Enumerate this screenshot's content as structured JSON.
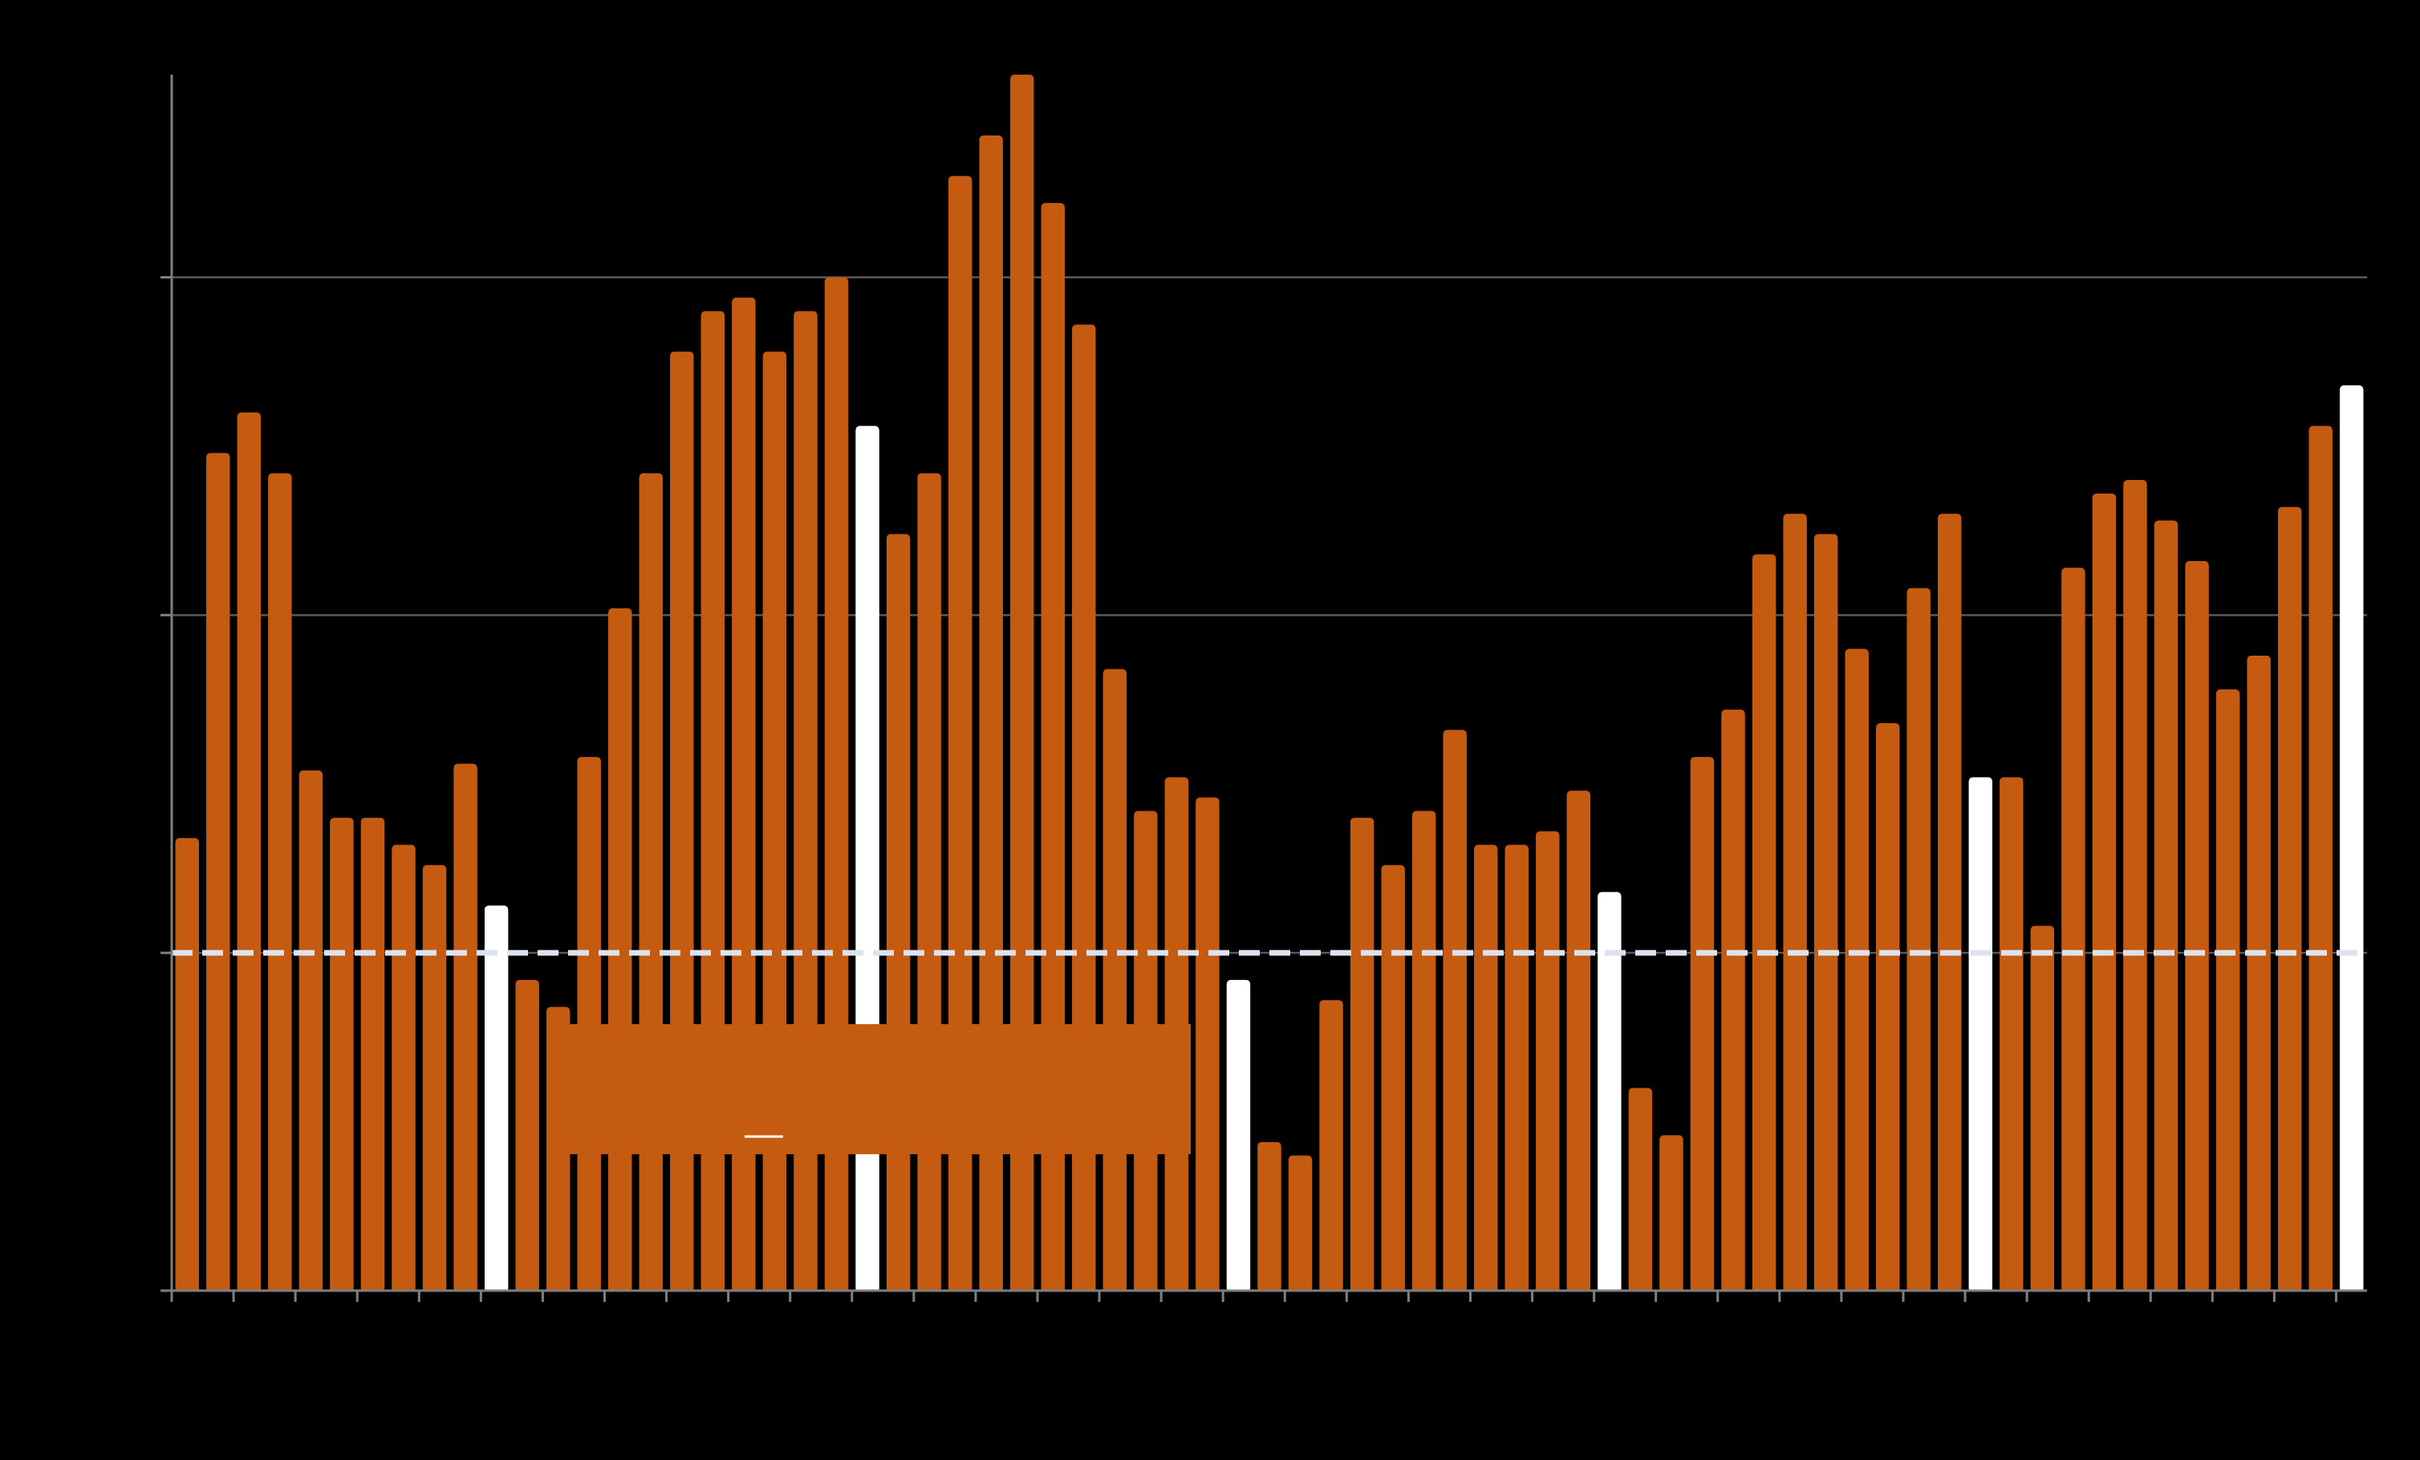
{
  "colors": {
    "background": "#000000",
    "bar": "#c55a11",
    "highlight_bar": "#ffffff",
    "gridline": "#595959",
    "axis": "#7f7f7f",
    "reference_line": "#dce3ee",
    "legend_box": "#c55a11",
    "legend_swatch": "#ffffff"
  },
  "chart_data": {
    "type": "bar",
    "title": "",
    "xlabel": "",
    "ylabel": "",
    "ylim": [
      0,
      3.6
    ],
    "grid": true,
    "legend_placement": "bottom-center",
    "reference_line": {
      "value": 1.0,
      "style": "dashed"
    },
    "highlighted_indices": [
      10,
      22,
      34,
      46,
      58,
      70
    ],
    "series": [
      {
        "values": [
          1.34,
          2.48,
          2.6,
          2.42,
          1.54,
          1.4,
          1.4,
          1.32,
          1.26,
          1.56,
          1.14,
          0.92,
          0.84,
          1.58,
          2.02,
          2.42,
          2.78,
          2.9,
          2.94,
          2.78,
          2.9,
          3.0,
          2.56,
          2.24,
          2.42,
          3.3,
          3.42,
          3.6,
          3.22,
          2.86,
          1.84,
          1.42,
          1.52,
          1.46,
          0.92,
          0.44,
          0.4,
          0.86,
          1.4,
          1.26,
          1.42,
          1.66,
          1.32,
          1.32,
          1.36,
          1.48,
          1.18,
          0.6,
          0.46,
          1.58,
          1.72,
          2.18,
          2.3,
          2.24,
          1.9,
          1.68,
          2.08,
          2.3,
          1.52,
          1.52,
          1.08,
          2.14,
          2.36,
          2.4,
          2.28,
          2.16,
          1.78,
          1.88,
          2.32,
          2.56,
          2.68
        ]
      }
    ]
  }
}
